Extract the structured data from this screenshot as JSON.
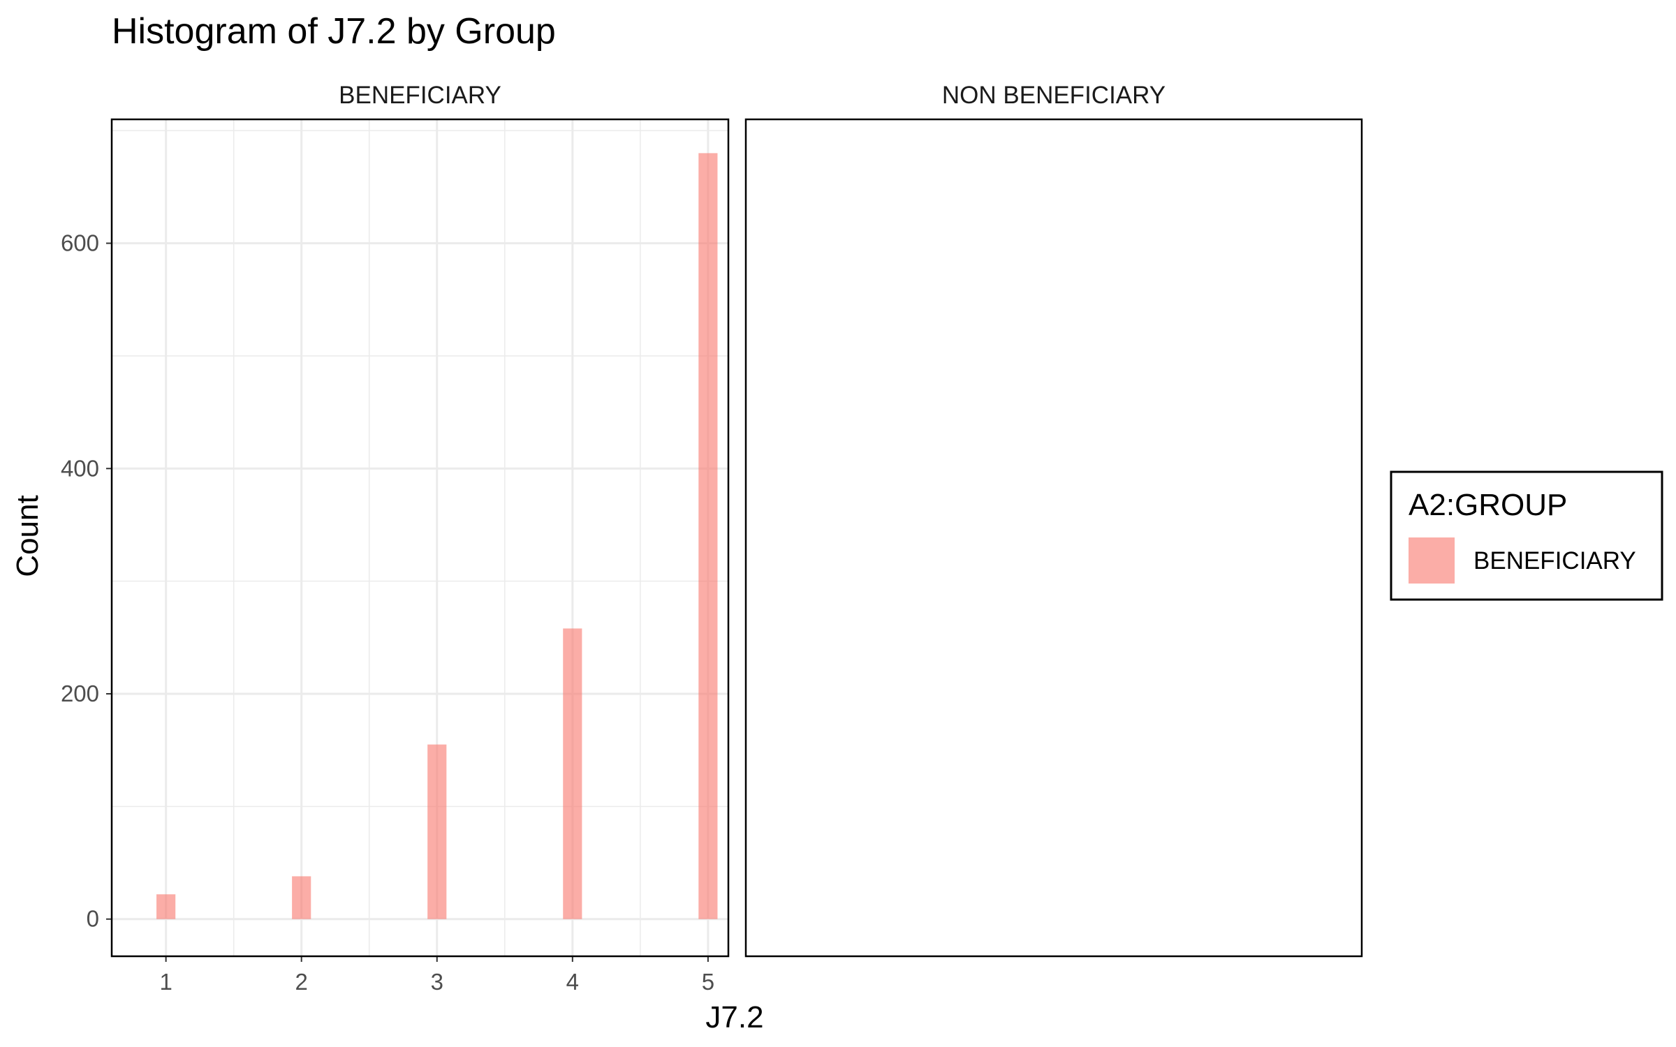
{
  "chart_data": {
    "type": "bar",
    "title": "Histogram of J7.2 by Group",
    "xlabel": "J7.2",
    "ylabel": "Count",
    "x_ticks": [
      "1",
      "2",
      "3",
      "4",
      "5"
    ],
    "y_ticks": [
      "0",
      "200",
      "400",
      "600"
    ],
    "xlim": [
      0.6,
      5.15
    ],
    "ylim": [
      -33,
      710
    ],
    "facets": [
      {
        "label": "BENEFICIARY",
        "bars": [
          {
            "x": 1,
            "count": 22
          },
          {
            "x": 2,
            "count": 38
          },
          {
            "x": 3,
            "count": 155
          },
          {
            "x": 4,
            "count": 258
          },
          {
            "x": 5,
            "count": 680
          }
        ]
      },
      {
        "label": "NON BENEFICIARY",
        "bars": []
      }
    ],
    "legend": {
      "title": "A2:GROUP",
      "position": "right",
      "items": [
        {
          "label": "BENEFICIARY",
          "color": "#F8766D"
        }
      ]
    },
    "bar_color": "#F8766D",
    "bar_opacity": 0.6,
    "grid": true
  }
}
